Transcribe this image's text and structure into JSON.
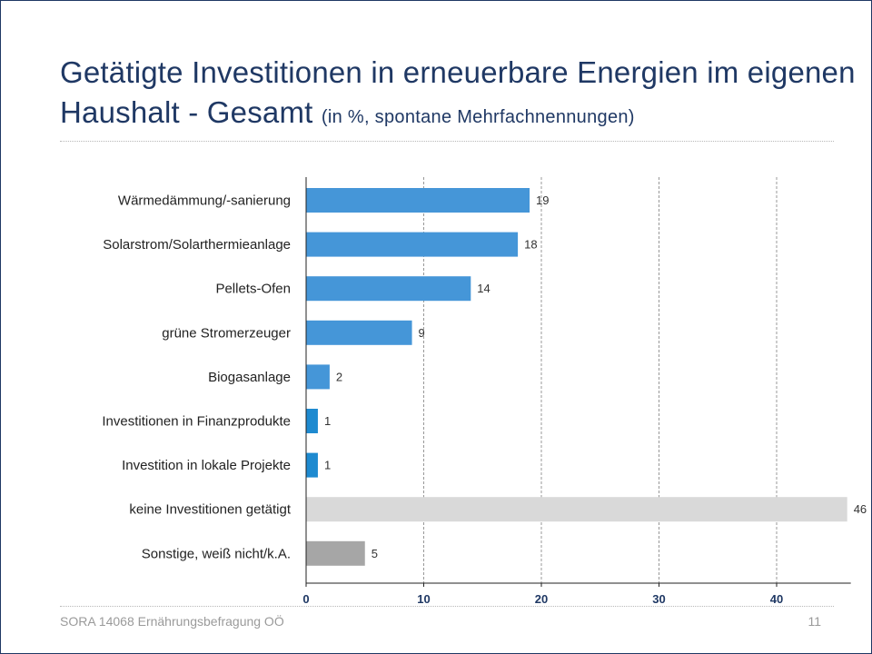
{
  "slide": {
    "title": "Getätigte Investitionen in erneuerbare Energien im eigenen Haushalt - Gesamt",
    "subtitle": "(in %, spontane Mehrfachnennungen)",
    "footer": "SORA 14068 Ernährungsbefragung OÖ",
    "page_number": "11"
  },
  "chart_data": {
    "type": "bar",
    "orientation": "horizontal",
    "title": "Getätigte Investitionen in erneuerbare Energien im eigenen Haushalt - Gesamt (in %, spontane Mehrfachnennungen)",
    "categories": [
      "Wärmedämmung/-sanierung",
      "Solarstrom/Solarthermieanlage",
      "Pellets-Ofen",
      "grüne Stromerzeuger",
      "Biogasanlage",
      "Investitionen in Finanzprodukte",
      "Investition in lokale Projekte",
      "keine Investitionen getätigt",
      "Sonstige, weiß nicht/k.A."
    ],
    "values": [
      19,
      18,
      14,
      9,
      2,
      1,
      1,
      46,
      5
    ],
    "bar_colors": [
      "#4596d8",
      "#4596d8",
      "#4596d8",
      "#4596d8",
      "#4596d8",
      "#1e8ad0",
      "#1e8ad0",
      "#d9d9d9",
      "#a6a6a6"
    ],
    "xlim": [
      0,
      46
    ],
    "xticks": [
      0,
      10,
      20,
      30,
      40
    ],
    "gridlines": "dashed vertical",
    "xlabel": "",
    "ylabel": ""
  },
  "colors": {
    "title": "#1f3864",
    "tick_labels": "#1f3864",
    "footer": "#9a9a9a"
  }
}
